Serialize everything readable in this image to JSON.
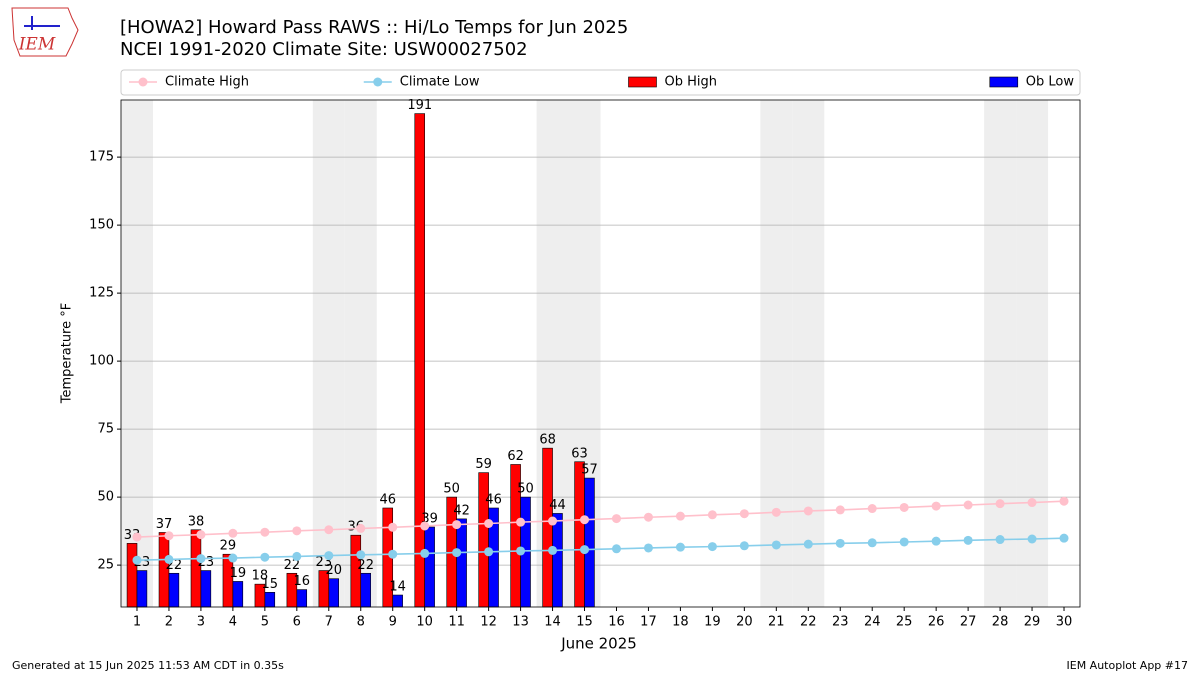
{
  "logo_text": "IEM",
  "footer_left": "Generated at 15 Jun 2025 11:53 AM CDT in 0.35s",
  "footer_right": "IEM Autoplot App #17",
  "chart_data": {
    "type": "bar",
    "title": "[HOWA2] Howard Pass RAWS :: Hi/Lo Temps for Jun 2025",
    "subtitle": "NCEI 1991-2020 Climate Site: USW00027502",
    "xlabel": "June 2025",
    "ylabel": "Temperature °F",
    "x": [
      1,
      2,
      3,
      4,
      5,
      6,
      7,
      8,
      9,
      10,
      11,
      12,
      13,
      14,
      15,
      16,
      17,
      18,
      19,
      20,
      21,
      22,
      23,
      24,
      25,
      26,
      27,
      28,
      29,
      30
    ],
    "xlim": [
      0.5,
      30.5
    ],
    "xticks": [
      1,
      2,
      3,
      4,
      5,
      6,
      7,
      8,
      9,
      10,
      11,
      12,
      13,
      14,
      15,
      16,
      17,
      18,
      19,
      20,
      21,
      22,
      23,
      24,
      25,
      26,
      27,
      28,
      29,
      30
    ],
    "ylim": [
      9.6,
      196
    ],
    "yticks": [
      25,
      50,
      75,
      100,
      125,
      150,
      175
    ],
    "grid": true,
    "shaded_days": [
      1,
      7,
      8,
      14,
      15,
      21,
      22,
      28,
      29
    ],
    "series": [
      {
        "name": "Climate High",
        "type": "line",
        "color": "#ffc0cb",
        "values": [
          35.3,
          35.8,
          36.2,
          36.7,
          37.1,
          37.6,
          38.0,
          38.5,
          38.9,
          39.4,
          39.9,
          40.3,
          40.8,
          41.2,
          41.7,
          42.1,
          42.6,
          43.0,
          43.5,
          43.9,
          44.4,
          44.9,
          45.3,
          45.8,
          46.2,
          46.7,
          47.1,
          47.6,
          48.0,
          48.5
        ]
      },
      {
        "name": "Climate Low",
        "type": "line",
        "color": "#87ceeb",
        "values": [
          26.8,
          27.1,
          27.4,
          27.6,
          27.9,
          28.2,
          28.5,
          28.8,
          29.0,
          29.3,
          29.6,
          29.9,
          30.2,
          30.4,
          30.7,
          31.0,
          31.3,
          31.6,
          31.8,
          32.1,
          32.4,
          32.7,
          33.0,
          33.2,
          33.5,
          33.8,
          34.1,
          34.4,
          34.6,
          34.9
        ]
      },
      {
        "name": "Ob High",
        "type": "bar",
        "color": "#ff0000",
        "values": [
          33,
          37,
          38,
          29,
          18,
          22,
          23,
          36,
          46,
          191,
          50,
          59,
          62,
          68,
          63,
          null,
          null,
          null,
          null,
          null,
          null,
          null,
          null,
          null,
          null,
          null,
          null,
          null,
          null,
          null
        ]
      },
      {
        "name": "Ob Low",
        "type": "bar",
        "color": "#0000ff",
        "values": [
          23,
          22,
          23,
          19,
          15,
          16,
          20,
          22,
          14,
          39,
          42,
          46,
          50,
          44,
          57,
          null,
          null,
          null,
          null,
          null,
          null,
          null,
          null,
          null,
          null,
          null,
          null,
          null,
          null,
          null
        ]
      }
    ]
  }
}
